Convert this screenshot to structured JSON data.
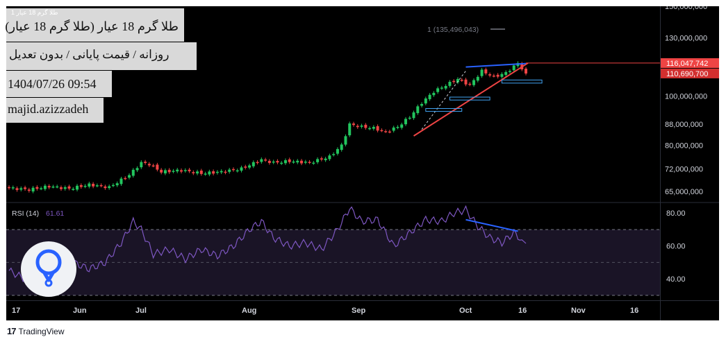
{
  "header": {
    "symbol_small": "طلا گرم 18 عیار 1",
    "title": "طلا گرم 18 عیار (طلا گرم 18 عیار)",
    "subtitle": "روزانه / قیمت پایانی / بدون تعدیل",
    "datetime": "1404/07/26 09:54",
    "author": "majid.azizzadeh"
  },
  "legend": {
    "series_label": "1 (135,496,043)"
  },
  "price_badges": {
    "top": "116,047,742",
    "bottom": "110,690,700"
  },
  "rsi": {
    "label": "RSI (14)",
    "value": "61.61"
  },
  "footer": {
    "brand": "TradingView",
    "logo": "17"
  },
  "colors": {
    "up": "#22c55e",
    "down": "#ef4444",
    "rsi_line": "#7e57c2",
    "trendline_red": "#ef4444",
    "trendline_blue": "#2962ff",
    "box_outline": "#42a5f5"
  },
  "chart_data": [
    {
      "type": "candlestick",
      "scale": "log",
      "x_ticks": [
        "17",
        "Jun",
        "Jul",
        "Aug",
        "Sep",
        "Oct",
        "16",
        "Nov",
        "16"
      ],
      "y_ticks": [
        "150,000,000",
        "130,000,000",
        "116,047,742",
        "110,690,700",
        "100,000,000",
        "88,000,000",
        "80,000,000",
        "72,000,000",
        "65,000,000"
      ],
      "ylim": [
        62000000,
        150000000
      ],
      "series": [
        {
          "name": "price",
          "approx_close_path": [
            [
              0,
              66000000
            ],
            [
              5,
              65500000
            ],
            [
              10,
              66500000
            ],
            [
              15,
              65800000
            ],
            [
              20,
              67000000
            ],
            [
              25,
              66200000
            ],
            [
              30,
              70000000
            ],
            [
              33,
              74000000
            ],
            [
              35,
              73500000
            ],
            [
              38,
              71000000
            ],
            [
              43,
              71500000
            ],
            [
              48,
              70500000
            ],
            [
              53,
              71000000
            ],
            [
              58,
              72000000
            ],
            [
              63,
              75000000
            ],
            [
              66,
              74000000
            ],
            [
              70,
              74500000
            ],
            [
              75,
              74000000
            ],
            [
              80,
              76000000
            ],
            [
              83,
              80000000
            ],
            [
              85,
              88000000
            ],
            [
              88,
              87000000
            ],
            [
              91,
              86500000
            ],
            [
              94,
              85000000
            ],
            [
              97,
              87000000
            ],
            [
              100,
              91000000
            ],
            [
              103,
              97000000
            ],
            [
              106,
              102000000
            ],
            [
              109,
              105000000
            ],
            [
              112,
              108000000
            ],
            [
              115,
              105000000
            ],
            [
              118,
              112000000
            ],
            [
              121,
              109000000
            ],
            [
              124,
              111000000
            ],
            [
              127,
              116000000
            ],
            [
              129,
              110690700
            ]
          ]
        }
      ]
    },
    {
      "type": "line",
      "title": "RSI (14)",
      "y_ticks": [
        "80.00",
        "60.00",
        "40.00"
      ],
      "ylim": [
        27,
        86
      ],
      "series": [
        {
          "name": "RSI (14)",
          "approx_path": [
            [
              0,
              45
            ],
            [
              4,
              40
            ],
            [
              8,
              48
            ],
            [
              12,
              42
            ],
            [
              16,
              50
            ],
            [
              20,
              46
            ],
            [
              24,
              50
            ],
            [
              28,
              62
            ],
            [
              31,
              75
            ],
            [
              33,
              70
            ],
            [
              36,
              55
            ],
            [
              40,
              58
            ],
            [
              44,
              52
            ],
            [
              48,
              58
            ],
            [
              52,
              54
            ],
            [
              56,
              60
            ],
            [
              60,
              70
            ],
            [
              63,
              75
            ],
            [
              66,
              65
            ],
            [
              70,
              60
            ],
            [
              74,
              62
            ],
            [
              78,
              58
            ],
            [
              82,
              70
            ],
            [
              85,
              83
            ],
            [
              88,
              75
            ],
            [
              92,
              76
            ],
            [
              96,
              60
            ],
            [
              100,
              68
            ],
            [
              104,
              76
            ],
            [
              108,
              75
            ],
            [
              111,
              80
            ],
            [
              114,
              82
            ],
            [
              117,
              72
            ],
            [
              120,
              65
            ],
            [
              123,
              62
            ],
            [
              126,
              68
            ],
            [
              129,
              61.61
            ]
          ]
        }
      ]
    }
  ]
}
